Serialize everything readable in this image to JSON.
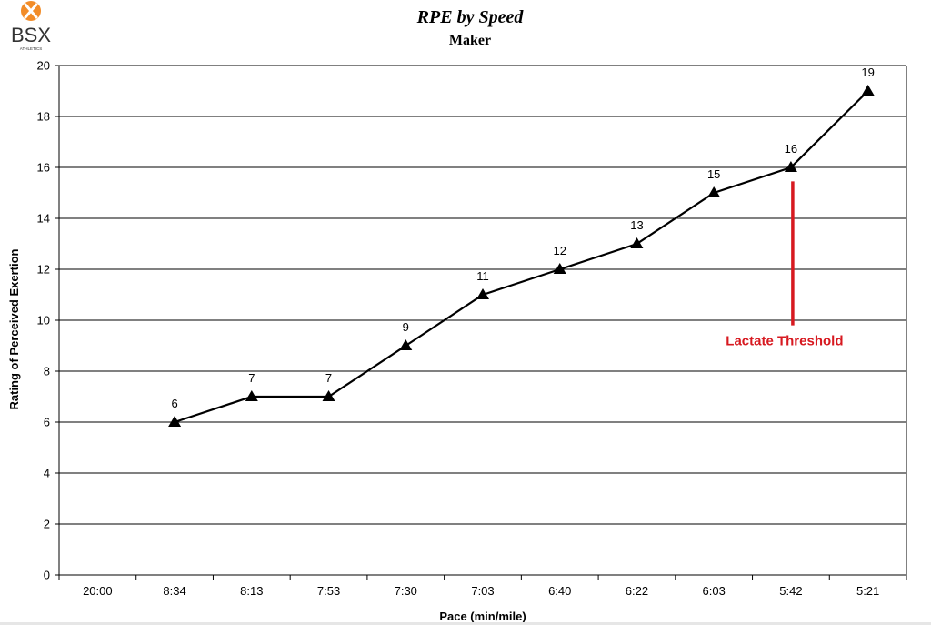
{
  "logo": {
    "text": "BSX",
    "subtext": "ATHLETICS",
    "color": "#f28c28"
  },
  "chart_data": {
    "type": "line",
    "title": "RPE by Speed",
    "subtitle": "Maker",
    "xlabel": "Pace (min/mile)",
    "ylabel": "Rating of Perceived Exertion",
    "categories": [
      "20:00",
      "8:34",
      "8:13",
      "7:53",
      "7:30",
      "7:03",
      "6:40",
      "6:22",
      "6:03",
      "5:42",
      "5:21"
    ],
    "series": [
      {
        "values": [
          null,
          6,
          7,
          7,
          9,
          11,
          12,
          13,
          15,
          16,
          19
        ],
        "marker": "triangle",
        "color": "#000000"
      }
    ],
    "data_labels": [
      "",
      "6",
      "7",
      "7",
      "9",
      "11",
      "12",
      "13",
      "15",
      "16",
      "19"
    ],
    "ylim": [
      0,
      20
    ],
    "yticks": [
      "0",
      "2",
      "4",
      "6",
      "8",
      "10",
      "12",
      "14",
      "16",
      "18",
      "20"
    ],
    "grid": "horizontal",
    "legend": "none",
    "annotation": {
      "text": "Lactate Threshold",
      "category": "5:42",
      "from_value": 15.45,
      "to_value": 9.8,
      "color": "#d71920"
    }
  }
}
